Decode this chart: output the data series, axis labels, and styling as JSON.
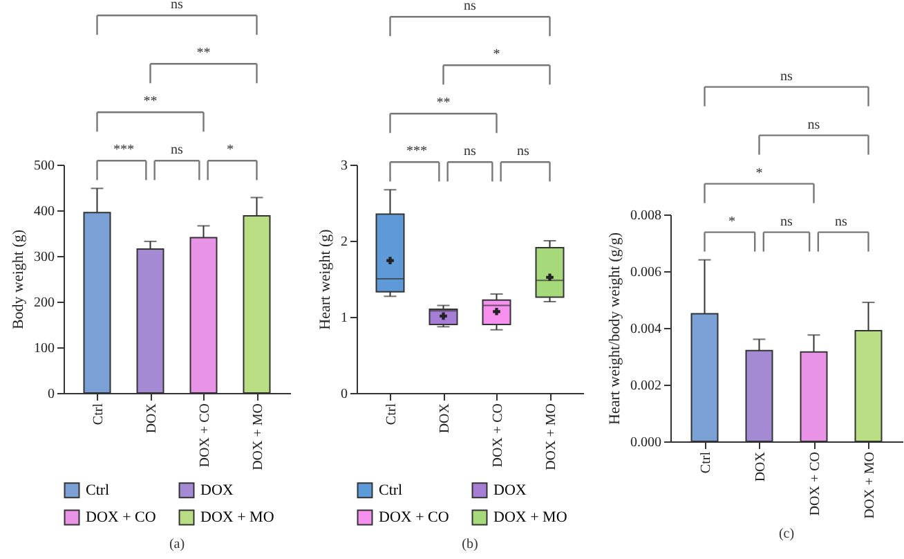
{
  "chart_data": [
    {
      "type": "bar",
      "title": "(a)",
      "ylabel": "Body weight (g)",
      "categories": [
        "Ctrl",
        "DOX",
        "DOX + CO",
        "DOX + MO"
      ],
      "series": [
        {
          "name": "Ctrl",
          "color": "#7aa0d6",
          "values": [
            395,
            null,
            null,
            null
          ],
          "errors": [
            53,
            null,
            null,
            null
          ]
        },
        {
          "name": "DOX",
          "color": "#a48ad2",
          "values": [
            null,
            315,
            null,
            null
          ],
          "errors": [
            null,
            17,
            null,
            null
          ]
        },
        {
          "name": "DOX + CO",
          "color": "#e993e6",
          "values": [
            null,
            null,
            340,
            null
          ],
          "errors": [
            null,
            null,
            26,
            null
          ]
        },
        {
          "name": "DOX + MO",
          "color": "#b9dd82",
          "values": [
            null,
            null,
            null,
            388
          ],
          "errors": [
            null,
            null,
            null,
            40
          ]
        }
      ],
      "ylim": [
        0,
        500
      ],
      "yticks": [
        0,
        100,
        200,
        300,
        400,
        500
      ],
      "legend": "bottom",
      "annotations": [
        "***",
        "ns",
        "*",
        "**",
        "**",
        "ns"
      ]
    },
    {
      "type": "box",
      "title": "(b)",
      "ylabel": "Heart weight (g)",
      "categories": [
        "Ctrl",
        "DOX",
        "DOX + CO",
        "DOX + MO"
      ],
      "series": [
        {
          "name": "Ctrl",
          "color": "#5f9ad8",
          "boxes": [
            {
              "low": 1.27,
              "q1": 1.33,
              "median": 1.5,
              "q3": 2.35,
              "high": 2.67,
              "mean": 1.74
            },
            null,
            null,
            null
          ]
        },
        {
          "name": "DOX",
          "color": "#a67ed6",
          "boxes": [
            null,
            {
              "low": 0.87,
              "q1": 0.9,
              "median": 1.08,
              "q3": 1.1,
              "high": 1.15,
              "mean": 1.01
            },
            null,
            null
          ]
        },
        {
          "name": "DOX + CO",
          "color": "#f590ee",
          "boxes": [
            null,
            null,
            {
              "low": 0.83,
              "q1": 0.9,
              "median": 1.15,
              "q3": 1.22,
              "high": 1.3,
              "mean": 1.07
            },
            null
          ]
        },
        {
          "name": "DOX + MO",
          "color": "#a6d97a",
          "boxes": [
            null,
            null,
            null,
            {
              "low": 1.2,
              "q1": 1.26,
              "median": 1.48,
              "q3": 1.91,
              "high": 2.0,
              "mean": 1.52
            }
          ]
        }
      ],
      "marker": "cross",
      "ylim": [
        0,
        3
      ],
      "yticks": [
        0,
        1,
        2,
        3
      ],
      "legend": "bottom",
      "annotations": [
        "***",
        "ns",
        "ns",
        "**",
        "*",
        "ns"
      ]
    },
    {
      "type": "bar",
      "title": "(c)",
      "ylabel": "Heart weight/body weight (g/g)",
      "categories": [
        "Ctrl",
        "DOX",
        "DOX + CO",
        "DOX + MO"
      ],
      "values": [
        0.0045,
        0.0032,
        0.00315,
        0.0039
      ],
      "errors": [
        0.0019,
        0.0004,
        0.0006,
        0.001
      ],
      "colors": [
        "#7aa0d6",
        "#a48ad2",
        "#e993e6",
        "#b9dd82"
      ],
      "ylim": [
        0,
        0.008
      ],
      "yticks": [
        {
          "value": 0,
          "label": "0.000"
        },
        {
          "value": 0.002,
          "label": "0.002"
        },
        {
          "value": 0.004,
          "label": "0.004"
        },
        {
          "value": 0.006,
          "label": "0.006"
        },
        {
          "value": 0.008,
          "label": "0.008"
        }
      ],
      "annotations": [
        "*",
        "ns",
        "ns",
        "*",
        "ns",
        "ns"
      ]
    }
  ]
}
